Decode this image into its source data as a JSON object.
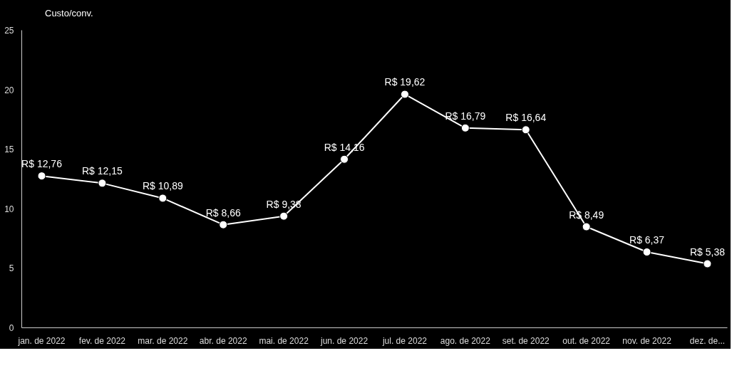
{
  "chart_data": {
    "type": "line",
    "categories": [
      "jan. de 2022",
      "fev. de 2022",
      "mar. de 2022",
      "abr. de 2022",
      "mai. de 2022",
      "jun. de 2022",
      "jul. de 2022",
      "ago. de 2022",
      "set. de 2022",
      "out. de 2022",
      "nov. de 2022",
      "dez. de..."
    ],
    "series": [
      {
        "name": "Custo/conv.",
        "color": "#ffffff",
        "values": [
          12.76,
          12.15,
          10.89,
          8.66,
          9.38,
          14.16,
          19.62,
          16.79,
          16.64,
          8.49,
          6.37,
          5.38
        ],
        "value_labels": [
          "R$ 12,76",
          "R$ 12,15",
          "R$ 10,89",
          "R$ 8,66",
          "R$ 9,38",
          "R$ 14,16",
          "R$ 19,62",
          "R$ 16,79",
          "R$ 16,64",
          "R$ 8,49",
          "R$ 6,37",
          "R$ 5,38"
        ]
      }
    ],
    "ylim": [
      0,
      25
    ],
    "yticks": [
      0,
      5,
      10,
      15,
      20,
      25
    ],
    "grid": false,
    "legend": "top left",
    "marker": "circle",
    "line_style": "solid"
  }
}
